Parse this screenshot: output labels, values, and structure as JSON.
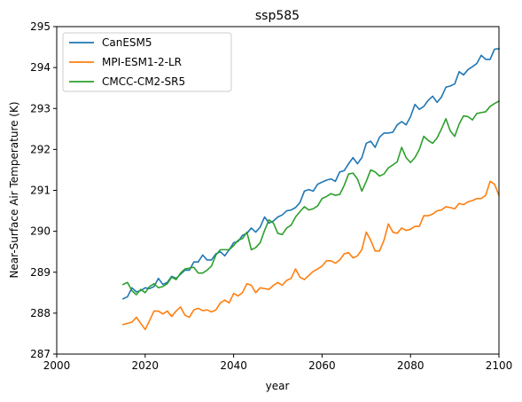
{
  "chart_data": {
    "type": "line",
    "title": "ssp585",
    "xlabel": "year",
    "ylabel": "Near-Surface Air Temperature (K)",
    "xlim": [
      2000,
      2100
    ],
    "ylim": [
      287,
      295
    ],
    "xticks": [
      2000,
      2020,
      2040,
      2060,
      2080,
      2100
    ],
    "yticks": [
      287,
      288,
      289,
      290,
      291,
      292,
      293,
      294,
      295
    ],
    "grid": false,
    "legend_position": "top-left",
    "x": [
      2015,
      2016,
      2017,
      2018,
      2019,
      2020,
      2021,
      2022,
      2023,
      2024,
      2025,
      2026,
      2027,
      2028,
      2029,
      2030,
      2031,
      2032,
      2033,
      2034,
      2035,
      2036,
      2037,
      2038,
      2039,
      2040,
      2041,
      2042,
      2043,
      2044,
      2045,
      2046,
      2047,
      2048,
      2049,
      2050,
      2051,
      2052,
      2053,
      2054,
      2055,
      2056,
      2057,
      2058,
      2059,
      2060,
      2061,
      2062,
      2063,
      2064,
      2065,
      2066,
      2067,
      2068,
      2069,
      2070,
      2071,
      2072,
      2073,
      2074,
      2075,
      2076,
      2077,
      2078,
      2079,
      2080,
      2081,
      2082,
      2083,
      2084,
      2085,
      2086,
      2087,
      2088,
      2089,
      2090,
      2091,
      2092,
      2093,
      2094,
      2095,
      2096,
      2097,
      2098,
      2099,
      2100
    ],
    "series": [
      {
        "name": "CanESM5",
        "color": "#1f77b4",
        "values": [
          288.35,
          288.4,
          288.62,
          288.52,
          288.55,
          288.62,
          288.6,
          288.65,
          288.85,
          288.7,
          288.75,
          288.9,
          288.85,
          288.95,
          289.05,
          289.05,
          289.25,
          289.25,
          289.42,
          289.3,
          289.3,
          289.45,
          289.5,
          289.4,
          289.55,
          289.72,
          289.75,
          289.9,
          289.95,
          290.08,
          289.98,
          290.1,
          290.35,
          290.2,
          290.25,
          290.35,
          290.4,
          290.5,
          290.52,
          290.58,
          290.7,
          290.98,
          291.02,
          290.98,
          291.15,
          291.2,
          291.25,
          291.28,
          291.22,
          291.45,
          291.48,
          291.65,
          291.8,
          291.65,
          291.8,
          292.15,
          292.2,
          292.05,
          292.3,
          292.4,
          292.4,
          292.42,
          292.6,
          292.68,
          292.6,
          292.8,
          293.1,
          292.98,
          293.05,
          293.2,
          293.3,
          293.15,
          293.28,
          293.52,
          293.55,
          293.6,
          293.9,
          293.82,
          293.95,
          294.02,
          294.1,
          294.3,
          294.2,
          294.2,
          294.45,
          294.46
        ]
      },
      {
        "name": "MPI-ESM1-2-LR",
        "color": "#ff7f0e",
        "values": [
          287.72,
          287.75,
          287.78,
          287.9,
          287.75,
          287.6,
          287.82,
          288.05,
          288.05,
          287.98,
          288.05,
          287.92,
          288.05,
          288.15,
          287.95,
          287.9,
          288.08,
          288.12,
          288.06,
          288.08,
          288.03,
          288.08,
          288.25,
          288.32,
          288.25,
          288.48,
          288.42,
          288.5,
          288.72,
          288.68,
          288.5,
          288.62,
          288.6,
          288.58,
          288.68,
          288.75,
          288.68,
          288.8,
          288.85,
          289.08,
          288.88,
          288.82,
          288.92,
          289.02,
          289.08,
          289.15,
          289.28,
          289.28,
          289.22,
          289.3,
          289.45,
          289.48,
          289.35,
          289.4,
          289.55,
          289.98,
          289.78,
          289.52,
          289.52,
          289.78,
          290.18,
          289.98,
          289.95,
          290.08,
          290.02,
          290.05,
          290.12,
          290.12,
          290.38,
          290.38,
          290.42,
          290.5,
          290.52,
          290.6,
          290.58,
          290.55,
          290.68,
          290.65,
          290.72,
          290.75,
          290.8,
          290.8,
          290.88,
          291.22,
          291.15,
          290.88
        ]
      },
      {
        "name": "CMCC-CM2-SR5",
        "color": "#2ca02c",
        "values": [
          288.7,
          288.75,
          288.55,
          288.45,
          288.58,
          288.5,
          288.65,
          288.72,
          288.62,
          288.65,
          288.72,
          288.88,
          288.82,
          288.98,
          289.08,
          289.1,
          289.12,
          288.98,
          288.98,
          289.05,
          289.15,
          289.42,
          289.55,
          289.55,
          289.55,
          289.65,
          289.78,
          289.82,
          289.98,
          289.55,
          289.6,
          289.72,
          290.02,
          290.28,
          290.2,
          289.95,
          289.92,
          290.08,
          290.15,
          290.35,
          290.48,
          290.6,
          290.52,
          290.55,
          290.62,
          290.8,
          290.85,
          290.92,
          290.88,
          290.9,
          291.12,
          291.4,
          291.42,
          291.28,
          290.98,
          291.22,
          291.5,
          291.45,
          291.35,
          291.4,
          291.55,
          291.62,
          291.7,
          292.05,
          291.8,
          291.68,
          291.8,
          292.0,
          292.32,
          292.22,
          292.15,
          292.28,
          292.5,
          292.75,
          292.45,
          292.32,
          292.62,
          292.82,
          292.8,
          292.72,
          292.88,
          292.9,
          292.92,
          293.05,
          293.12,
          293.18
        ]
      }
    ]
  }
}
